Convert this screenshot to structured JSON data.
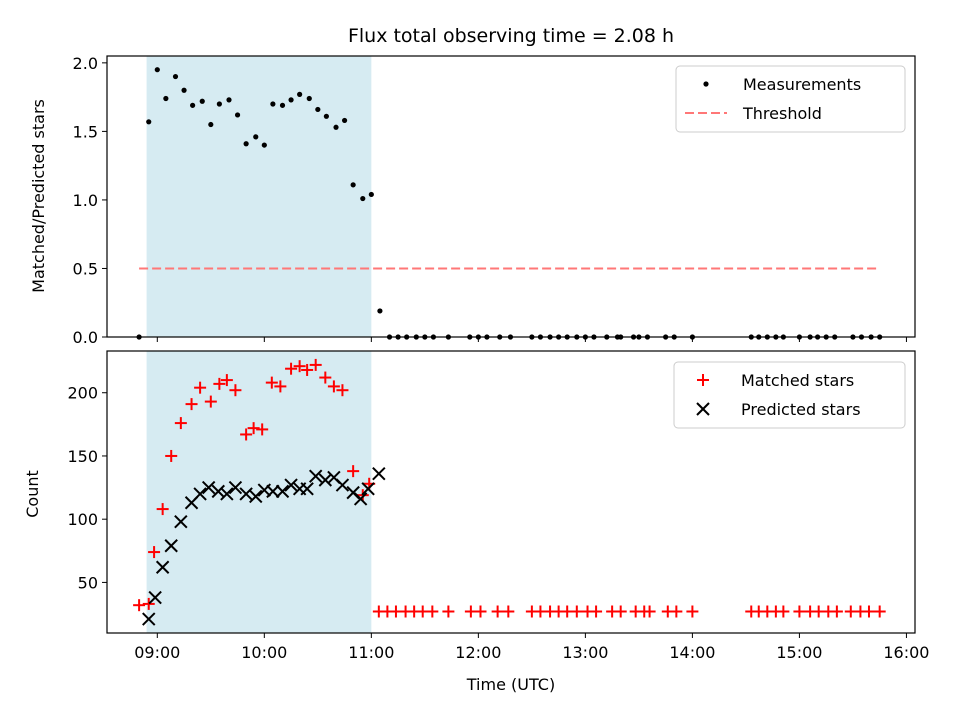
{
  "chart_data": [
    {
      "type": "scatter",
      "title": "Flux total observing time = 2.08 h",
      "xlabel": "",
      "ylabel": "Matched/Predicted stars",
      "xlim": [
        8.53,
        16.08
      ],
      "ylim": [
        0.0,
        2.05
      ],
      "yticks": [
        0.0,
        0.5,
        1.0,
        1.5,
        2.0
      ],
      "ytick_labels": [
        "0.0",
        "0.5",
        "1.0",
        "1.5",
        "2.0"
      ],
      "shaded_interval": [
        8.9,
        11.0
      ],
      "shade_color": "#add8e6",
      "legend_position": "top-right",
      "series": [
        {
          "name": "Measurements",
          "marker": "dot",
          "color": "#000000",
          "points": [
            [
              8.83,
              0.0
            ],
            [
              8.92,
              1.57
            ],
            [
              9.0,
              1.95
            ],
            [
              9.08,
              1.74
            ],
            [
              9.17,
              1.9
            ],
            [
              9.25,
              1.8
            ],
            [
              9.33,
              1.69
            ],
            [
              9.42,
              1.72
            ],
            [
              9.5,
              1.55
            ],
            [
              9.58,
              1.7
            ],
            [
              9.67,
              1.73
            ],
            [
              9.75,
              1.62
            ],
            [
              9.83,
              1.41
            ],
            [
              9.92,
              1.46
            ],
            [
              10.0,
              1.4
            ],
            [
              10.08,
              1.7
            ],
            [
              10.17,
              1.69
            ],
            [
              10.25,
              1.73
            ],
            [
              10.33,
              1.77
            ],
            [
              10.42,
              1.74
            ],
            [
              10.5,
              1.66
            ],
            [
              10.58,
              1.61
            ],
            [
              10.67,
              1.53
            ],
            [
              10.75,
              1.58
            ],
            [
              10.83,
              1.11
            ],
            [
              10.92,
              1.01
            ],
            [
              11.0,
              1.04
            ],
            [
              11.08,
              0.19
            ],
            [
              11.17,
              0.0
            ],
            [
              11.25,
              0.0
            ],
            [
              11.33,
              0.0
            ],
            [
              11.42,
              0.0
            ],
            [
              11.5,
              0.0
            ],
            [
              11.58,
              0.0
            ],
            [
              11.72,
              0.0
            ],
            [
              11.92,
              0.0
            ],
            [
              12.0,
              0.0
            ],
            [
              12.08,
              0.0
            ],
            [
              12.2,
              0.0
            ],
            [
              12.3,
              0.0
            ],
            [
              12.5,
              0.0
            ],
            [
              12.58,
              0.0
            ],
            [
              12.67,
              0.0
            ],
            [
              12.75,
              0.0
            ],
            [
              12.83,
              0.0
            ],
            [
              12.92,
              0.0
            ],
            [
              13.0,
              0.0
            ],
            [
              13.08,
              0.0
            ],
            [
              13.2,
              0.0
            ],
            [
              13.3,
              0.0
            ],
            [
              13.33,
              0.0
            ],
            [
              13.45,
              0.0
            ],
            [
              13.5,
              0.0
            ],
            [
              13.58,
              0.0
            ],
            [
              13.75,
              0.0
            ],
            [
              13.83,
              0.0
            ],
            [
              14.0,
              0.0
            ],
            [
              14.55,
              0.0
            ],
            [
              14.62,
              0.0
            ],
            [
              14.7,
              0.0
            ],
            [
              14.78,
              0.0
            ],
            [
              14.85,
              0.0
            ],
            [
              15.0,
              0.0
            ],
            [
              15.1,
              0.0
            ],
            [
              15.17,
              0.0
            ],
            [
              15.25,
              0.0
            ],
            [
              15.33,
              0.0
            ],
            [
              15.5,
              0.0
            ],
            [
              15.58,
              0.0
            ],
            [
              15.67,
              0.0
            ],
            [
              15.75,
              0.0
            ]
          ]
        },
        {
          "name": "Threshold",
          "marker": "dashed-line",
          "color": "#ff7777",
          "points": [
            [
              8.83,
              0.5
            ],
            [
              15.75,
              0.5
            ]
          ]
        }
      ]
    },
    {
      "type": "scatter",
      "title": "",
      "xlabel": "Time (UTC)",
      "ylabel": "Count",
      "xlim": [
        8.53,
        16.08
      ],
      "ylim": [
        10,
        233
      ],
      "yticks": [
        50,
        100,
        150,
        200
      ],
      "ytick_labels": [
        "50",
        "100",
        "150",
        "200"
      ],
      "xticks": [
        9,
        10,
        11,
        12,
        13,
        14,
        15,
        16
      ],
      "xtick_labels": [
        "09:00",
        "10:00",
        "11:00",
        "12:00",
        "13:00",
        "14:00",
        "15:00",
        "16:00"
      ],
      "shaded_interval": [
        8.9,
        11.0
      ],
      "shade_color": "#add8e6",
      "legend_position": "top-right",
      "series": [
        {
          "name": "Matched stars",
          "marker": "plus",
          "color": "#ff0000",
          "points": [
            [
              8.83,
              32
            ],
            [
              8.92,
              33
            ],
            [
              8.97,
              74
            ],
            [
              9.05,
              108
            ],
            [
              9.13,
              150
            ],
            [
              9.22,
              176
            ],
            [
              9.32,
              191
            ],
            [
              9.4,
              204
            ],
            [
              9.5,
              193
            ],
            [
              9.58,
              207
            ],
            [
              9.65,
              210
            ],
            [
              9.73,
              202
            ],
            [
              9.83,
              167
            ],
            [
              9.9,
              172
            ],
            [
              9.98,
              171
            ],
            [
              10.07,
              208
            ],
            [
              10.15,
              205
            ],
            [
              10.25,
              219
            ],
            [
              10.33,
              221
            ],
            [
              10.4,
              218
            ],
            [
              10.48,
              222
            ],
            [
              10.57,
              212
            ],
            [
              10.65,
              205
            ],
            [
              10.73,
              202
            ],
            [
              10.83,
              138
            ],
            [
              10.92,
              119
            ],
            [
              10.98,
              128
            ],
            [
              11.07,
              27
            ],
            [
              11.15,
              27
            ],
            [
              11.23,
              27
            ],
            [
              11.32,
              27
            ],
            [
              11.4,
              27
            ],
            [
              11.48,
              27
            ],
            [
              11.57,
              27
            ],
            [
              11.72,
              27
            ],
            [
              11.93,
              27
            ],
            [
              12.02,
              27
            ],
            [
              12.18,
              27
            ],
            [
              12.28,
              27
            ],
            [
              12.5,
              27
            ],
            [
              12.58,
              27
            ],
            [
              12.67,
              27
            ],
            [
              12.75,
              27
            ],
            [
              12.83,
              27
            ],
            [
              12.92,
              27
            ],
            [
              13.02,
              27
            ],
            [
              13.1,
              27
            ],
            [
              13.25,
              27
            ],
            [
              13.33,
              27
            ],
            [
              13.47,
              27
            ],
            [
              13.55,
              27
            ],
            [
              13.6,
              27
            ],
            [
              13.77,
              27
            ],
            [
              13.85,
              27
            ],
            [
              14.0,
              27
            ],
            [
              14.55,
              27
            ],
            [
              14.62,
              27
            ],
            [
              14.7,
              27
            ],
            [
              14.78,
              27
            ],
            [
              14.85,
              27
            ],
            [
              15.0,
              27
            ],
            [
              15.1,
              27
            ],
            [
              15.18,
              27
            ],
            [
              15.27,
              27
            ],
            [
              15.35,
              27
            ],
            [
              15.48,
              27
            ],
            [
              15.57,
              27
            ],
            [
              15.65,
              27
            ],
            [
              15.75,
              27
            ]
          ]
        },
        {
          "name": "Predicted stars",
          "marker": "x",
          "color": "#000000",
          "points": [
            [
              8.92,
              21
            ],
            [
              8.98,
              38
            ],
            [
              9.05,
              62
            ],
            [
              9.13,
              79
            ],
            [
              9.22,
              98
            ],
            [
              9.32,
              113
            ],
            [
              9.4,
              120
            ],
            [
              9.48,
              125
            ],
            [
              9.57,
              122
            ],
            [
              9.65,
              120
            ],
            [
              9.73,
              125
            ],
            [
              9.83,
              120
            ],
            [
              9.92,
              118
            ],
            [
              10.0,
              123
            ],
            [
              10.08,
              122
            ],
            [
              10.17,
              122
            ],
            [
              10.25,
              127
            ],
            [
              10.33,
              124
            ],
            [
              10.4,
              124
            ],
            [
              10.48,
              134
            ],
            [
              10.57,
              131
            ],
            [
              10.65,
              133
            ],
            [
              10.73,
              127
            ],
            [
              10.83,
              121
            ],
            [
              10.9,
              116
            ],
            [
              10.97,
              124
            ],
            [
              11.07,
              136
            ]
          ]
        }
      ]
    }
  ]
}
